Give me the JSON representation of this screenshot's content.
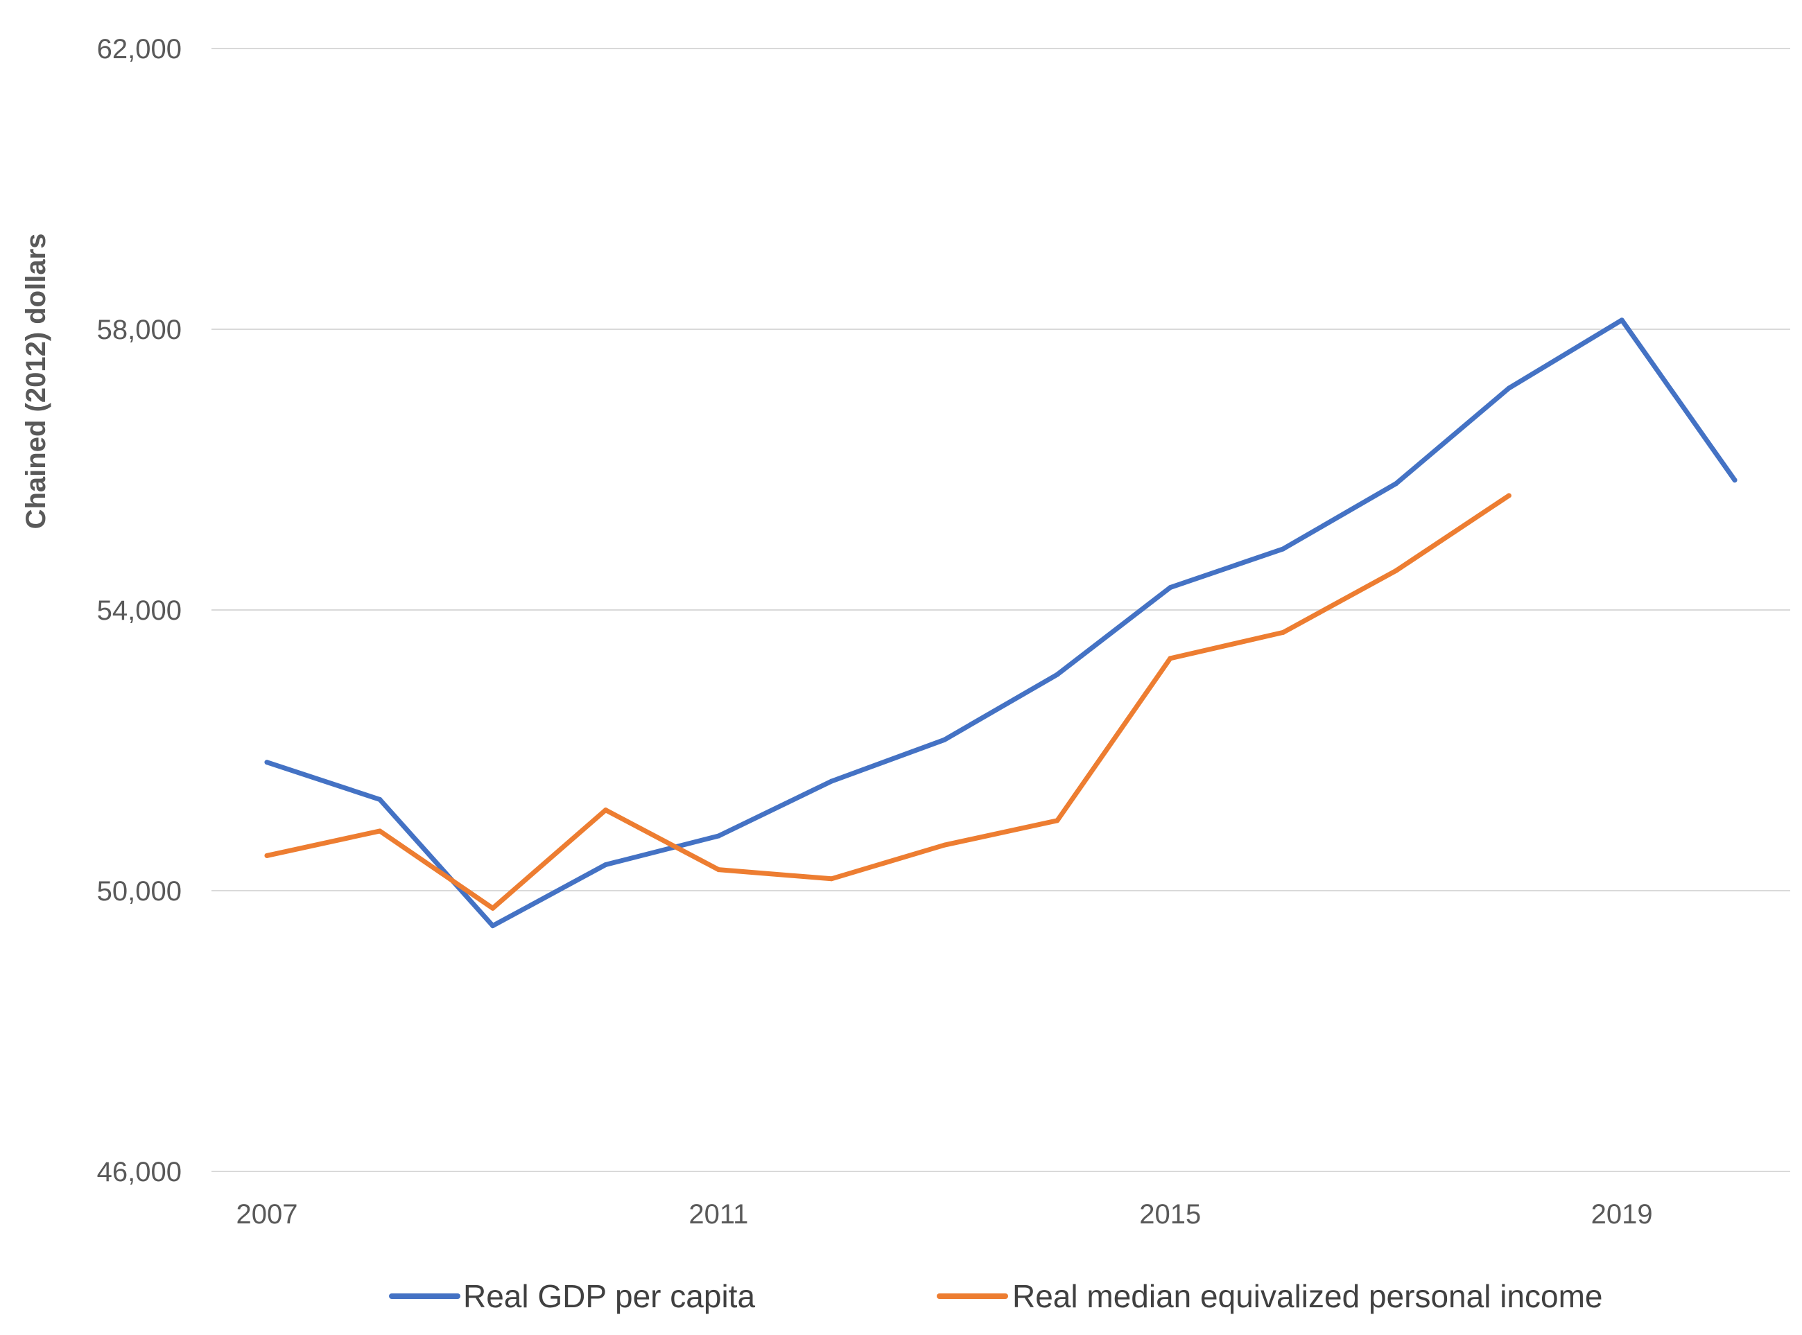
{
  "chart_data": {
    "type": "line",
    "title": "",
    "xlabel": "",
    "ylabel": "Chained (2012) dollars",
    "ylim": [
      46000,
      62000
    ],
    "yticks": [
      46000,
      50000,
      54000,
      58000,
      62000
    ],
    "ytick_labels": [
      "46,000",
      "50,000",
      "54,000",
      "58,000",
      "62,000"
    ],
    "xlim": [
      2007,
      2020
    ],
    "xticks": [
      2007,
      2011,
      2015,
      2019
    ],
    "xtick_labels": [
      "2007",
      "2011",
      "2015",
      "2019"
    ],
    "grid": true,
    "legend_position": "bottom",
    "series": [
      {
        "name": "Real GDP per capita",
        "color": "#4472c4",
        "x": [
          2007,
          2008,
          2009,
          2010,
          2011,
          2012,
          2013,
          2014,
          2015,
          2016,
          2017,
          2018,
          2019,
          2020
        ],
        "values": [
          51830,
          51300,
          49500,
          50370,
          50780,
          51560,
          52150,
          53080,
          54320,
          54870,
          55800,
          57160,
          58130,
          55850
        ]
      },
      {
        "name": "Real median equivalized personal income",
        "color": "#ed7d31",
        "x": [
          2007,
          2008,
          2009,
          2010,
          2011,
          2012,
          2013,
          2014,
          2015,
          2016,
          2017,
          2018
        ],
        "values": [
          50500,
          50850,
          49750,
          51150,
          50300,
          50170,
          50650,
          51000,
          53310,
          53680,
          54560,
          55630
        ]
      }
    ]
  }
}
